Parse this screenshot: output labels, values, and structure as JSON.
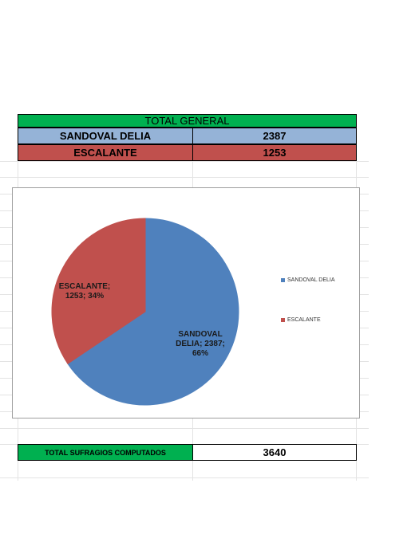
{
  "table": {
    "header": "TOTAL GENERAL",
    "rows": [
      {
        "name": "SANDOVAL DELIA",
        "votes": "2387",
        "color": "#95b3d7"
      },
      {
        "name": "ESCALANTE",
        "votes": "1253",
        "color": "#c0504d"
      }
    ]
  },
  "totals": {
    "label": "TOTAL SUFRAGIOS COMPUTADOS",
    "value": "3640"
  },
  "chart_data": {
    "type": "pie",
    "categories": [
      "SANDOVAL DELIA",
      "ESCALANTE"
    ],
    "values": [
      2387,
      1253
    ],
    "percentages": [
      66,
      34
    ],
    "colors": [
      "#4f81bd",
      "#c0504d"
    ],
    "data_labels": [
      "SANDOVAL DELIA; 2387; 66%",
      "ESCALANTE; 1253; 34%"
    ],
    "legend": [
      "SANDOVAL DELIA",
      "ESCALANTE"
    ],
    "legend_position": "right"
  }
}
